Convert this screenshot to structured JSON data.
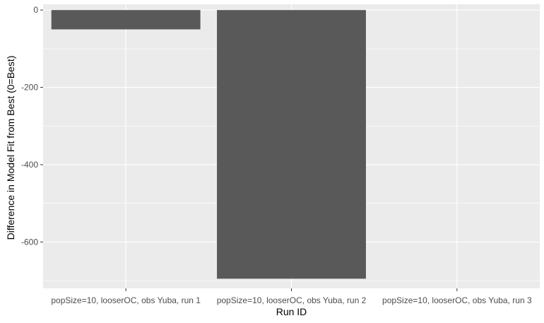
{
  "chart_data": {
    "type": "bar",
    "xlabel": "Run ID",
    "ylabel": "Difference in Model Fit from Best (0=Best)",
    "categories": [
      "popSize=10, looserOC, obs Yuba, run 1",
      "popSize=10, looserOC, obs Yuba, run 2",
      "popSize=10, looserOC, obs Yuba, run 3"
    ],
    "values": [
      -50,
      -695,
      0
    ],
    "ylim": [
      -720,
      15
    ],
    "yticks": [
      0,
      -200,
      -400,
      -600
    ],
    "grid": true,
    "colors": {
      "panel_background": "#EBEBEB",
      "grid_major": "#FFFFFF",
      "bar_fill": "#595959"
    }
  }
}
